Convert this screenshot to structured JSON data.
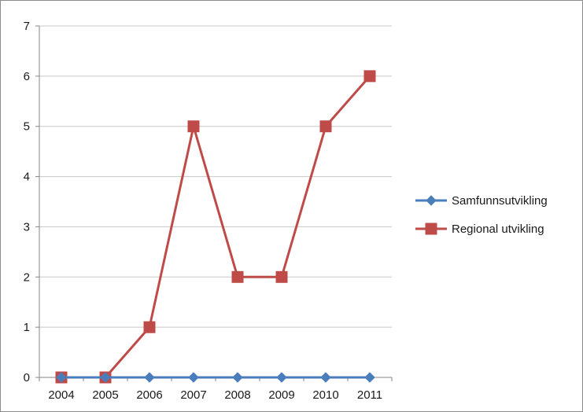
{
  "chart_data": {
    "type": "line",
    "title": "",
    "xlabel": "",
    "ylabel": "",
    "x": [
      "2004",
      "2005",
      "2006",
      "2007",
      "2008",
      "2009",
      "2010",
      "2011"
    ],
    "ylim": [
      0,
      7
    ],
    "yticks": [
      "0",
      "1",
      "2",
      "3",
      "4",
      "5",
      "6",
      "7"
    ],
    "grid": true,
    "legend_position": "right",
    "series": [
      {
        "name": "Samfunnsutvikling",
        "values": [
          0,
          0,
          0,
          0,
          0,
          0,
          0,
          0
        ],
        "color": "#4a7ebb",
        "marker": "diamond"
      },
      {
        "name": "Regional utvikling",
        "values": [
          0,
          0,
          1,
          5,
          2,
          2,
          5,
          6
        ],
        "color": "#be4b48",
        "marker": "square"
      }
    ]
  }
}
